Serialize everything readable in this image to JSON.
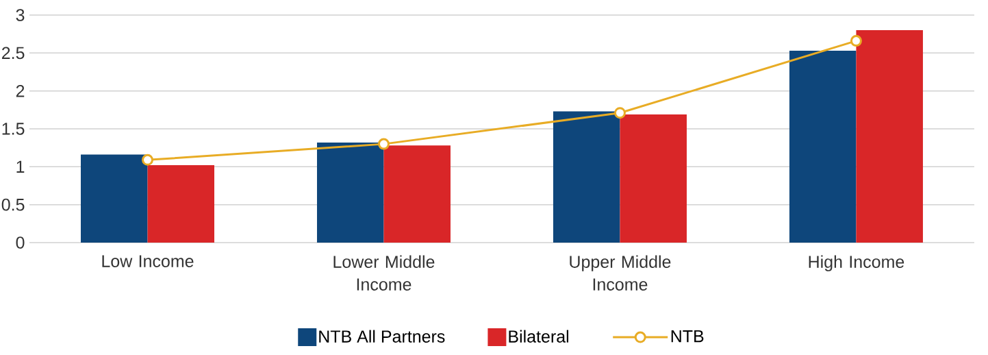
{
  "chart_data": {
    "type": "bar",
    "categories": [
      "Low Income",
      "Lower Middle Income",
      "Upper Middle Income",
      "High Income"
    ],
    "series": [
      {
        "name": "NTB All Partners",
        "color": "#0e467b",
        "values": [
          1.16,
          1.32,
          1.73,
          2.53
        ]
      },
      {
        "name": "Bilateral",
        "color": "#d92628",
        "values": [
          1.02,
          1.28,
          1.69,
          2.8
        ]
      },
      {
        "name": "NTB",
        "type": "line",
        "color": "#e8ac25",
        "marker": "circle",
        "values": [
          1.09,
          1.3,
          1.71,
          2.66
        ]
      }
    ],
    "ylim": [
      0,
      3
    ],
    "yticks": [
      0,
      0.5,
      1,
      1.5,
      2,
      2.5,
      3
    ],
    "grid": "y",
    "legend": "bottom"
  }
}
